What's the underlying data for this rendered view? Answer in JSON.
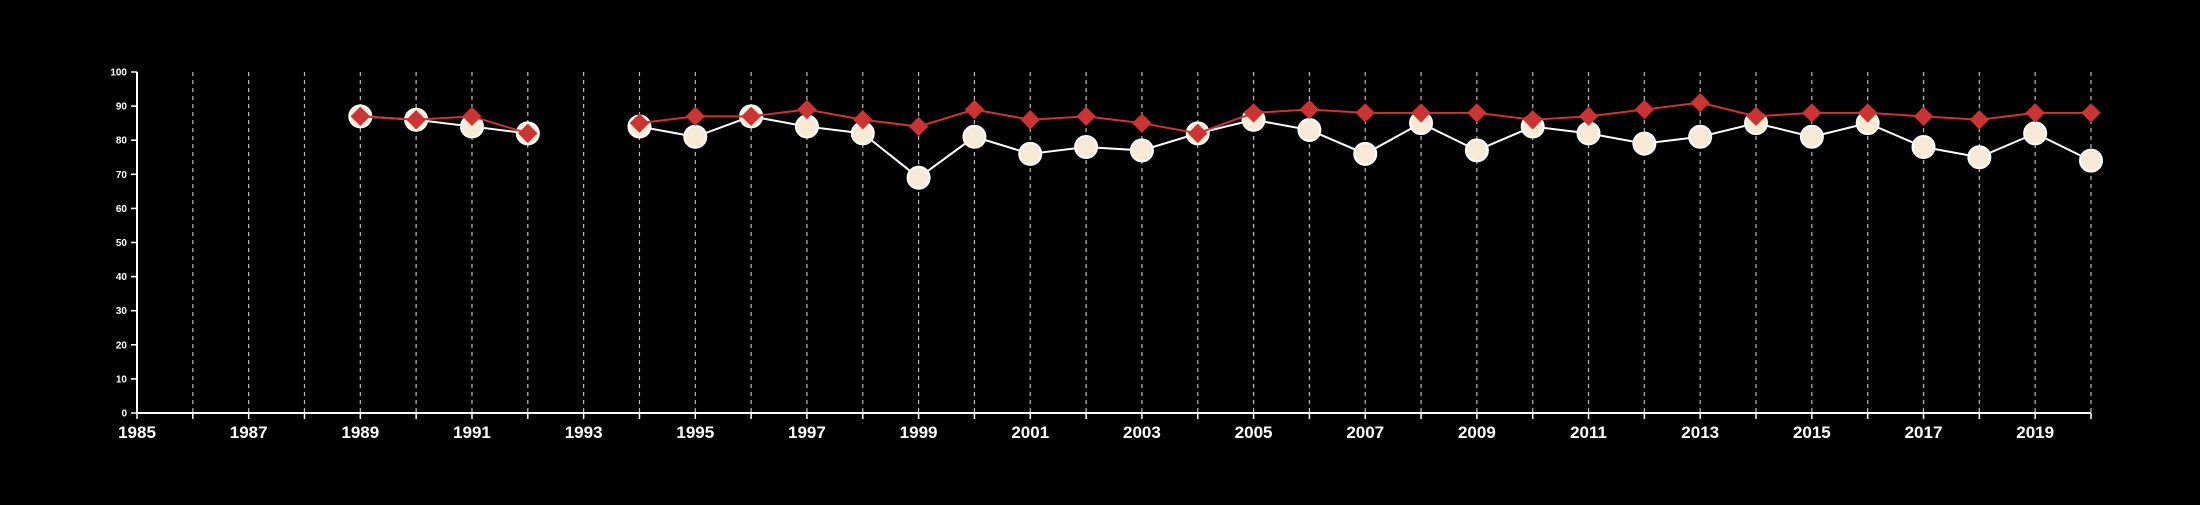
{
  "colors": {
    "background": "#000000",
    "axis": "#ffffff",
    "grid": "#bdbdbd",
    "series_white_fill": "#f7ead7",
    "series_white_stroke": "#ffffff",
    "series_red": "#cc3333"
  },
  "chart_data": {
    "type": "line",
    "xlim": [
      1985,
      2020
    ],
    "ylim": [
      0,
      100
    ],
    "xticks": [
      1985,
      1987,
      1989,
      1991,
      1993,
      1995,
      1997,
      1999,
      2001,
      2003,
      2005,
      2007,
      2009,
      2011,
      2013,
      2015,
      2017,
      2019
    ],
    "yticks": [
      0,
      10,
      20,
      30,
      40,
      50,
      60,
      70,
      80,
      90,
      100
    ],
    "vertical_grid_years": [
      1986,
      1987,
      1988,
      1989,
      1990,
      1991,
      1992,
      1993,
      1994,
      1995,
      1996,
      1997,
      1998,
      1999,
      2000,
      2001,
      2002,
      2003,
      2004,
      2005,
      2006,
      2007,
      2008,
      2009,
      2010,
      2011,
      2012,
      2013,
      2014,
      2015,
      2016,
      2017,
      2018,
      2019,
      2020
    ],
    "grid": "vertical dashed",
    "legend": "none",
    "series": [
      {
        "marker": "circle",
        "color": "#f7ead7",
        "segments": [
          {
            "x": [
              1989,
              1990,
              1991,
              1992
            ],
            "y": [
              87,
              86,
              84,
              82
            ]
          },
          {
            "x": [
              1994,
              1995,
              1996,
              1997,
              1998,
              1999,
              2000,
              2001,
              2002,
              2003,
              2004,
              2005,
              2006,
              2007,
              2008,
              2009,
              2010,
              2011,
              2012,
              2013,
              2014,
              2015,
              2016,
              2017,
              2018,
              2019,
              2020
            ],
            "y": [
              84,
              81,
              87,
              84,
              82,
              69,
              81,
              76,
              78,
              77,
              82,
              86,
              83,
              76,
              85,
              77,
              84,
              82,
              79,
              81,
              85,
              81,
              85,
              78,
              75,
              82,
              74
            ]
          }
        ]
      },
      {
        "marker": "diamond",
        "color": "#cc3333",
        "segments": [
          {
            "x": [
              1989,
              1990,
              1991,
              1992
            ],
            "y": [
              87,
              86,
              87,
              82
            ]
          },
          {
            "x": [
              1994,
              1995,
              1996,
              1997,
              1998,
              1999,
              2000,
              2001,
              2002,
              2003,
              2004,
              2005,
              2006,
              2007,
              2008,
              2009,
              2010,
              2011,
              2012,
              2013,
              2014,
              2015,
              2016,
              2017,
              2018,
              2019,
              2020
            ],
            "y": [
              85,
              87,
              87,
              89,
              86,
              84,
              89,
              86,
              87,
              85,
              82,
              88,
              89,
              88,
              88,
              88,
              86,
              87,
              89,
              91,
              87,
              88,
              88,
              87,
              86,
              88,
              88
            ]
          }
        ]
      }
    ]
  }
}
